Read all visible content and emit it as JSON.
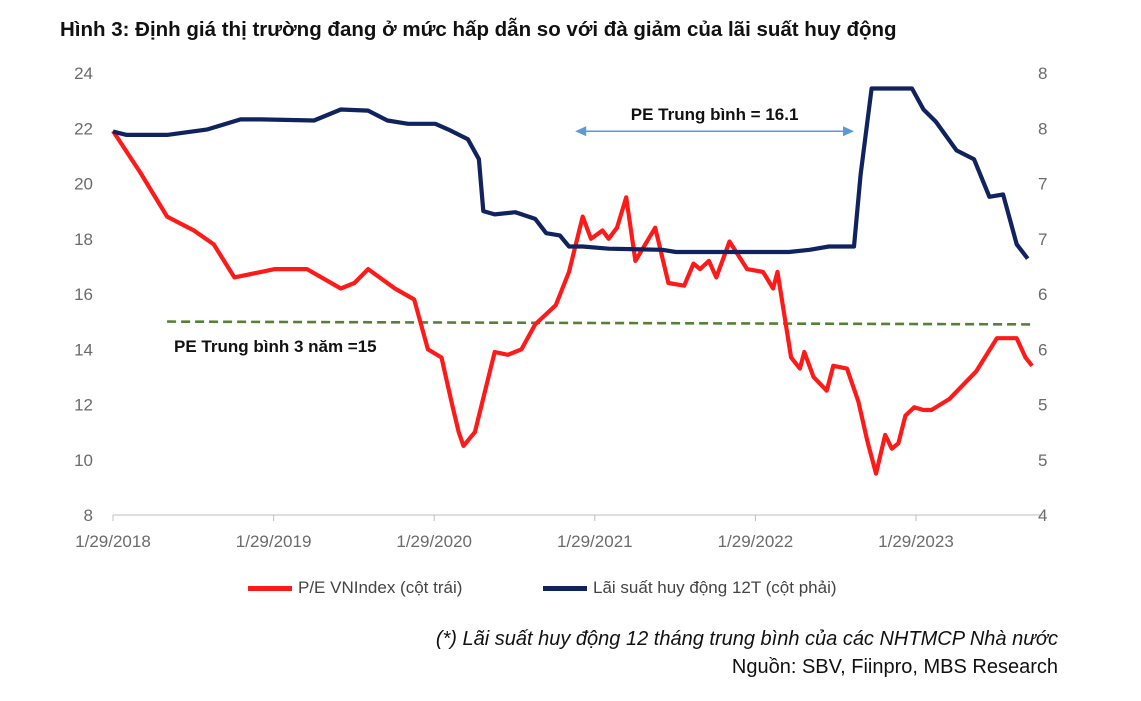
{
  "title": "Hình 3: Định giá thị trường đang ở mức hấp dẫn so với đà giảm của lãi suất huy động",
  "footnote": "(*) Lãi suất huy động 12 tháng trung bình của các NHTMCP Nhà nước",
  "source": "Nguồn: SBV, Fiinpro, MBS Research",
  "colors": {
    "pe": "#ff1a1a",
    "rate": "#10235e",
    "avg3y": "#548235",
    "arrow": "#5b9bd5"
  },
  "chart_data": {
    "type": "line",
    "x_tick_labels": [
      "1/29/2018",
      "1/29/2019",
      "1/29/2020",
      "1/29/2021",
      "1/29/2022",
      "1/29/2023"
    ],
    "x_range": [
      "2018-01-29",
      "2023-11-15"
    ],
    "left_axis": {
      "ylim": [
        8,
        24
      ],
      "ticks": [
        "24",
        "22",
        "20",
        "18",
        "16",
        "14",
        "12",
        "10",
        "8"
      ]
    },
    "right_axis": {
      "ylim": [
        4,
        8
      ],
      "ticks": [
        "8",
        "8",
        "7",
        "7",
        "6",
        "6",
        "5",
        "5",
        "4"
      ]
    },
    "legend_position": "bottom",
    "series": [
      {
        "name": "P/E VNIndex  (cột trái)",
        "axis": "left",
        "points": [
          [
            "2018-01-29",
            21.9
          ],
          [
            "2018-04-01",
            20.4
          ],
          [
            "2018-06-01",
            18.8
          ],
          [
            "2018-08-01",
            18.3
          ],
          [
            "2018-09-15",
            17.8
          ],
          [
            "2018-11-01",
            16.6
          ],
          [
            "2019-01-01",
            16.8
          ],
          [
            "2019-02-01",
            16.9
          ],
          [
            "2019-04-15",
            16.9
          ],
          [
            "2019-07-01",
            16.2
          ],
          [
            "2019-08-01",
            16.4
          ],
          [
            "2019-09-01",
            16.9
          ],
          [
            "2019-11-01",
            16.2
          ],
          [
            "2019-12-15",
            15.8
          ],
          [
            "2020-01-15",
            14.0
          ],
          [
            "2020-02-15",
            13.7
          ],
          [
            "2020-03-10",
            12.0
          ],
          [
            "2020-03-25",
            11.0
          ],
          [
            "2020-04-05",
            10.5
          ],
          [
            "2020-05-01",
            11.0
          ],
          [
            "2020-06-15",
            13.9
          ],
          [
            "2020-07-15",
            13.8
          ],
          [
            "2020-08-15",
            14.0
          ],
          [
            "2020-09-15",
            14.9
          ],
          [
            "2020-11-01",
            15.6
          ],
          [
            "2020-12-01",
            16.8
          ],
          [
            "2021-01-01",
            18.8
          ],
          [
            "2021-01-20",
            18.0
          ],
          [
            "2021-02-15",
            18.3
          ],
          [
            "2021-03-01",
            18.0
          ],
          [
            "2021-03-20",
            18.4
          ],
          [
            "2021-04-10",
            19.5
          ],
          [
            "2021-05-01",
            17.2
          ],
          [
            "2021-06-15",
            18.4
          ],
          [
            "2021-07-15",
            16.4
          ],
          [
            "2021-08-20",
            16.3
          ],
          [
            "2021-09-10",
            17.1
          ],
          [
            "2021-09-25",
            16.9
          ],
          [
            "2021-10-15",
            17.2
          ],
          [
            "2021-11-01",
            16.6
          ],
          [
            "2021-12-01",
            17.9
          ],
          [
            "2022-01-10",
            16.9
          ],
          [
            "2022-02-15",
            16.8
          ],
          [
            "2022-03-10",
            16.2
          ],
          [
            "2022-03-20",
            16.8
          ],
          [
            "2022-04-20",
            13.7
          ],
          [
            "2022-05-10",
            13.3
          ],
          [
            "2022-05-20",
            13.9
          ],
          [
            "2022-06-10",
            13.0
          ],
          [
            "2022-07-10",
            12.5
          ],
          [
            "2022-07-25",
            13.4
          ],
          [
            "2022-08-25",
            13.3
          ],
          [
            "2022-09-20",
            12.1
          ],
          [
            "2022-10-10",
            10.7
          ],
          [
            "2022-10-30",
            9.5
          ],
          [
            "2022-11-20",
            10.9
          ],
          [
            "2022-12-05",
            10.4
          ],
          [
            "2022-12-20",
            10.6
          ],
          [
            "2023-01-05",
            11.6
          ],
          [
            "2023-01-25",
            11.9
          ],
          [
            "2023-02-15",
            11.8
          ],
          [
            "2023-03-05",
            11.8
          ],
          [
            "2023-04-15",
            12.2
          ],
          [
            "2023-06-15",
            13.2
          ],
          [
            "2023-08-01",
            14.4
          ],
          [
            "2023-09-15",
            14.4
          ],
          [
            "2023-10-05",
            13.7
          ],
          [
            "2023-10-20",
            13.4
          ]
        ]
      },
      {
        "name": "Lãi suất huy động 12T  (cột phải)",
        "axis": "right",
        "points": [
          [
            "2018-01-29",
            7.47
          ],
          [
            "2018-03-01",
            7.44
          ],
          [
            "2018-06-01",
            7.44
          ],
          [
            "2018-09-01",
            7.49
          ],
          [
            "2018-11-15",
            7.58
          ],
          [
            "2019-01-01",
            7.58
          ],
          [
            "2019-05-01",
            7.57
          ],
          [
            "2019-07-01",
            7.67
          ],
          [
            "2019-09-01",
            7.66
          ],
          [
            "2019-10-15",
            7.57
          ],
          [
            "2019-12-01",
            7.54
          ],
          [
            "2020-02-01",
            7.54
          ],
          [
            "2020-03-01",
            7.49
          ],
          [
            "2020-04-15",
            7.4
          ],
          [
            "2020-05-10",
            7.22
          ],
          [
            "2020-05-20",
            6.75
          ],
          [
            "2020-06-15",
            6.72
          ],
          [
            "2020-08-01",
            6.74
          ],
          [
            "2020-09-15",
            6.68
          ],
          [
            "2020-10-10",
            6.55
          ],
          [
            "2020-11-10",
            6.53
          ],
          [
            "2020-12-01",
            6.43
          ],
          [
            "2021-01-01",
            6.43
          ],
          [
            "2021-03-01",
            6.41
          ],
          [
            "2021-07-01",
            6.4
          ],
          [
            "2021-08-01",
            6.38
          ],
          [
            "2022-01-01",
            6.38
          ],
          [
            "2022-04-15",
            6.38
          ],
          [
            "2022-06-01",
            6.4
          ],
          [
            "2022-07-15",
            6.43
          ],
          [
            "2022-09-10",
            6.43
          ],
          [
            "2022-09-25",
            7.08
          ],
          [
            "2022-10-20",
            7.86
          ],
          [
            "2022-12-01",
            7.86
          ],
          [
            "2023-01-20",
            7.86
          ],
          [
            "2023-02-15",
            7.67
          ],
          [
            "2023-03-15",
            7.56
          ],
          [
            "2023-05-01",
            7.3
          ],
          [
            "2023-06-10",
            7.22
          ],
          [
            "2023-07-15",
            6.88
          ],
          [
            "2023-08-15",
            6.9
          ],
          [
            "2023-09-15",
            6.45
          ],
          [
            "2023-10-10",
            6.32
          ]
        ]
      },
      {
        "name": "PE Trung bình 3 năm =15",
        "axis": "left",
        "style": "dashed",
        "points": [
          [
            "2018-06-01",
            15.0
          ],
          [
            "2023-10-20",
            14.9
          ]
        ]
      }
    ],
    "annotations": [
      {
        "text": "PE Trung bình = 16.1",
        "range": [
          "2020-12-15",
          "2022-09-10"
        ],
        "y": 22.0
      },
      {
        "text": "PE Trung bình 3 năm =15"
      }
    ]
  }
}
